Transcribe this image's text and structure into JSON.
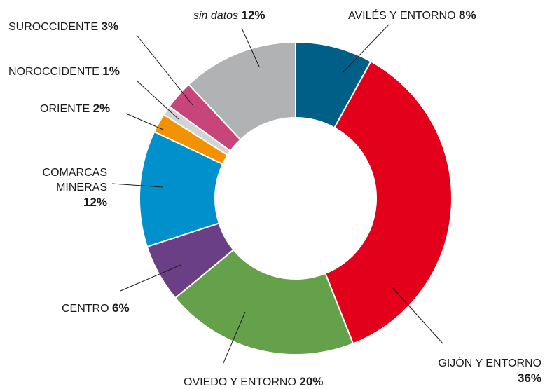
{
  "chart_data": {
    "type": "donut",
    "categories": [
      "AVILÉS Y ENTORNO",
      "GIJÓN Y ENTORNO",
      "OVIEDO Y ENTORNO",
      "CENTRO",
      "COMARCAS MINERAS",
      "ORIENTE",
      "NOROCCIDENTE",
      "SUROCCIDENTE",
      "sin datos"
    ],
    "values": [
      8,
      36,
      20,
      6,
      12,
      2,
      1,
      3,
      12
    ],
    "value_labels": [
      "8%",
      "36%",
      "20%",
      "6%",
      "12%",
      "2%",
      "1%",
      "3%",
      "12%"
    ],
    "colors": [
      "#005f87",
      "#e2001a",
      "#65a04a",
      "#6b3f85",
      "#0090cc",
      "#f39200",
      "#d3d3d3",
      "#c8457a",
      "#b1b2b4"
    ]
  }
}
